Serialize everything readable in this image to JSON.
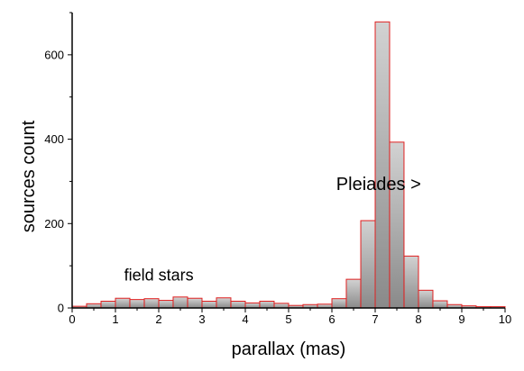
{
  "chart_data": {
    "type": "bar",
    "xlabel": "parallax  (mas)",
    "ylabel": "sources count",
    "xlim": [
      0,
      10
    ],
    "ylim": [
      0,
      700
    ],
    "x_ticks": [
      "0",
      "1",
      "2",
      "3",
      "4",
      "5",
      "6",
      "7",
      "8",
      "9",
      "10"
    ],
    "y_ticks": [
      "0",
      "200",
      "400",
      "600"
    ],
    "bin_width": 0.333,
    "bin_starts": [
      0.0,
      0.333,
      0.667,
      1.0,
      1.333,
      1.667,
      2.0,
      2.333,
      2.667,
      3.0,
      3.333,
      3.667,
      4.0,
      4.333,
      4.667,
      5.0,
      5.333,
      5.667,
      6.0,
      6.333,
      6.667,
      7.0,
      7.333,
      7.667,
      8.0,
      8.333,
      8.667,
      9.0,
      9.333,
      9.667
    ],
    "values": [
      4,
      10,
      16,
      23,
      20,
      22,
      18,
      26,
      23,
      16,
      24,
      16,
      12,
      16,
      11,
      6,
      8,
      9,
      22,
      68,
      207,
      678,
      393,
      123,
      42,
      17,
      8,
      5,
      3,
      3
    ],
    "annotations": [
      {
        "text": "Pleiades >",
        "x": 6.1,
        "y": 280
      },
      {
        "text": "field stars",
        "x": 1.2,
        "y": 65
      }
    ],
    "grid": false,
    "colors": {
      "bar_edge": "#e02020",
      "bar_fill_top": "#d2d2d2",
      "bar_fill_bottom": "#8a8a8a",
      "axis": "#000000"
    }
  }
}
